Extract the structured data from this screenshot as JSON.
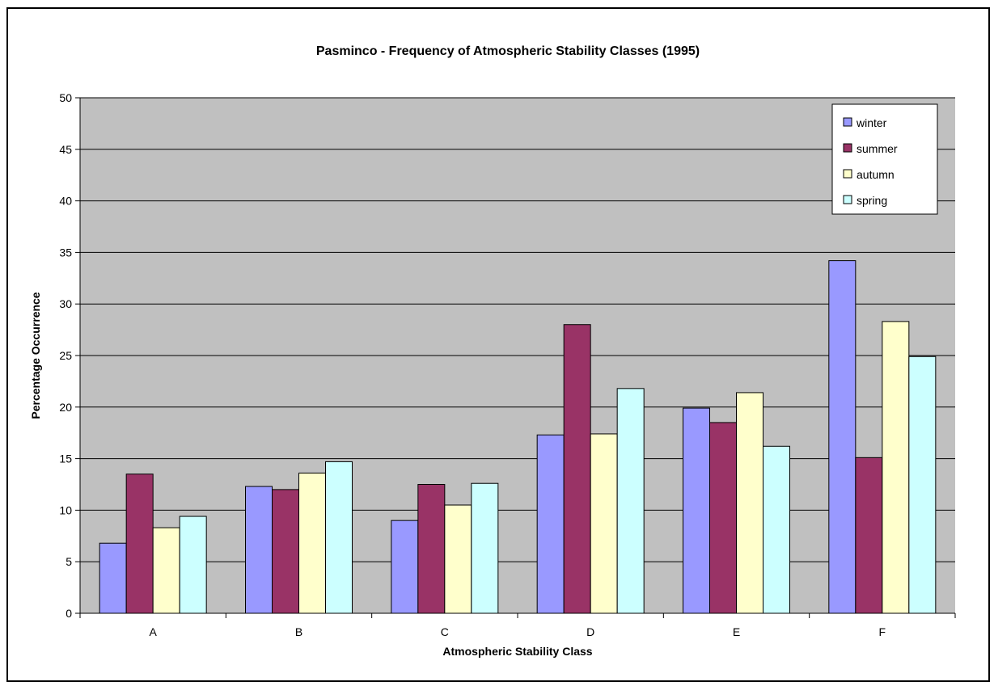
{
  "chart_data": {
    "type": "bar",
    "title": "Pasminco - Frequency of Atmospheric Stability Classes (1995)",
    "xlabel": "Atmospheric Stability Class",
    "ylabel": "Percentage Occurrence",
    "categories": [
      "A",
      "B",
      "C",
      "D",
      "E",
      "F"
    ],
    "series": [
      {
        "name": "winter",
        "color": "#9999ff",
        "values": [
          6.8,
          12.3,
          9.0,
          17.3,
          19.9,
          34.2
        ]
      },
      {
        "name": "summer",
        "color": "#993366",
        "values": [
          13.5,
          12.0,
          12.5,
          28.0,
          18.5,
          15.1
        ]
      },
      {
        "name": "autumn",
        "color": "#ffffcc",
        "values": [
          8.3,
          13.6,
          10.5,
          17.4,
          21.4,
          28.3
        ]
      },
      {
        "name": "spring",
        "color": "#ccffff",
        "values": [
          9.4,
          14.7,
          12.6,
          21.8,
          16.2,
          24.9
        ]
      }
    ],
    "ylim": [
      0,
      50
    ],
    "yticks": [
      0,
      5,
      10,
      15,
      20,
      25,
      30,
      35,
      40,
      45,
      50
    ],
    "grid": true,
    "plot_background": "#c0c0c0",
    "legend_position": "top-right"
  }
}
